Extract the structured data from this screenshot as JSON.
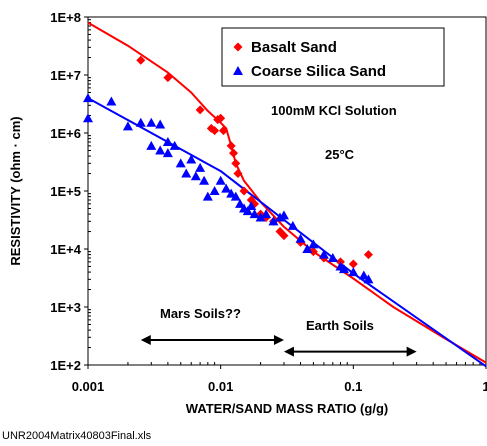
{
  "chart_data": {
    "type": "scatter",
    "xlabel": "WATER/SAND MASS RATIO (g/g)",
    "ylabel": "RESISTIVITY (ohm · cm)",
    "x_scale": "log",
    "y_scale": "log",
    "xlim": [
      0.001,
      1
    ],
    "ylim": [
      100,
      100000000
    ],
    "x_ticks": [
      {
        "value": 0.001,
        "label": "0.001"
      },
      {
        "value": 0.01,
        "label": "0.01"
      },
      {
        "value": 0.1,
        "label": "0.1"
      },
      {
        "value": 1,
        "label": "1"
      }
    ],
    "y_ticks": [
      {
        "value": 100,
        "label": "1E+2"
      },
      {
        "value": 1000,
        "label": "1E+3"
      },
      {
        "value": 10000,
        "label": "1E+4"
      },
      {
        "value": 100000,
        "label": "1E+5"
      },
      {
        "value": 1000000,
        "label": "1E+6"
      },
      {
        "value": 10000000,
        "label": "1E+7"
      },
      {
        "value": 100000000,
        "label": "1E+8"
      }
    ],
    "legend_position": "top-right",
    "series": [
      {
        "name": "Basalt Sand",
        "color": "#ff0000",
        "marker": "diamond",
        "points": [
          [
            0.0025,
            18000000
          ],
          [
            0.004,
            9000000
          ],
          [
            0.007,
            2500000
          ],
          [
            0.0085,
            1200000
          ],
          [
            0.009,
            1100000
          ],
          [
            0.0095,
            1700000
          ],
          [
            0.01,
            1800000
          ],
          [
            0.0105,
            1100000
          ],
          [
            0.012,
            600000
          ],
          [
            0.0125,
            450000
          ],
          [
            0.013,
            300000
          ],
          [
            0.0135,
            200000
          ],
          [
            0.015,
            100000
          ],
          [
            0.017,
            70000
          ],
          [
            0.018,
            60000
          ],
          [
            0.02,
            40000
          ],
          [
            0.022,
            35000
          ],
          [
            0.025,
            30000
          ],
          [
            0.028,
            20000
          ],
          [
            0.03,
            17000
          ],
          [
            0.04,
            13000
          ],
          [
            0.05,
            9000
          ],
          [
            0.06,
            7000
          ],
          [
            0.08,
            6000
          ],
          [
            0.1,
            5500
          ],
          [
            0.13,
            8000
          ]
        ],
        "fit": [
          [
            0.001,
            80000000
          ],
          [
            0.002,
            32000000
          ],
          [
            0.004,
            11000000
          ],
          [
            0.006,
            5000000
          ],
          [
            0.008,
            2400000
          ],
          [
            0.01,
            1500000
          ],
          [
            0.011,
            1200000
          ],
          [
            0.012,
            600000
          ],
          [
            0.013,
            300000
          ],
          [
            0.015,
            150000
          ],
          [
            0.02,
            65000
          ],
          [
            0.03,
            24000
          ],
          [
            0.05,
            9000
          ],
          [
            0.1,
            3100
          ],
          [
            0.2,
            1000
          ],
          [
            0.5,
            280
          ],
          [
            1,
            110
          ]
        ]
      },
      {
        "name": "Coarse Silica Sand",
        "color": "#0000ff",
        "marker": "triangle",
        "points": [
          [
            0.001,
            4000000
          ],
          [
            0.001,
            1800000
          ],
          [
            0.0015,
            3500000
          ],
          [
            0.002,
            1300000
          ],
          [
            0.0025,
            1500000
          ],
          [
            0.003,
            1500000
          ],
          [
            0.0035,
            1400000
          ],
          [
            0.003,
            600000
          ],
          [
            0.0035,
            500000
          ],
          [
            0.004,
            700000
          ],
          [
            0.005,
            300000
          ],
          [
            0.0055,
            200000
          ],
          [
            0.006,
            350000
          ],
          [
            0.007,
            250000
          ],
          [
            0.0075,
            150000
          ],
          [
            0.008,
            80000
          ],
          [
            0.009,
            100000
          ],
          [
            0.01,
            150000
          ],
          [
            0.011,
            110000
          ],
          [
            0.012,
            90000
          ],
          [
            0.013,
            80000
          ],
          [
            0.014,
            60000
          ],
          [
            0.015,
            50000
          ],
          [
            0.017,
            55000
          ],
          [
            0.018,
            40000
          ],
          [
            0.02,
            35000
          ],
          [
            0.022,
            40000
          ],
          [
            0.025,
            30000
          ],
          [
            0.028,
            35000
          ],
          [
            0.03,
            38000
          ],
          [
            0.035,
            25000
          ],
          [
            0.04,
            15000
          ],
          [
            0.05,
            12000
          ],
          [
            0.06,
            8000
          ],
          [
            0.07,
            7000
          ],
          [
            0.08,
            5000
          ],
          [
            0.1,
            4000
          ],
          [
            0.12,
            3500
          ],
          [
            0.13,
            3000
          ],
          [
            0.004,
            450000
          ],
          [
            0.0045,
            600000
          ],
          [
            0.0065,
            180000
          ],
          [
            0.016,
            45000
          ],
          [
            0.045,
            10000
          ],
          [
            0.085,
            4500
          ]
        ],
        "fit": [
          [
            0.001,
            4000000
          ],
          [
            0.01,
            220000
          ],
          [
            0.1,
            3800
          ],
          [
            1,
            95
          ]
        ]
      }
    ],
    "annotations": [
      {
        "text": "100mM KCl Solution"
      },
      {
        "text": "25°C"
      },
      {
        "text": "Mars Soils??",
        "arrow_from": 0.0025,
        "arrow_to": 0.03,
        "arrow_at_y": 270
      },
      {
        "text": "Earth Soils",
        "arrow_from": 0.03,
        "arrow_to": 0.3,
        "arrow_at_y": 170
      }
    ]
  },
  "footer": {
    "filename": "UNR2004Matrix40803Final.xls"
  }
}
